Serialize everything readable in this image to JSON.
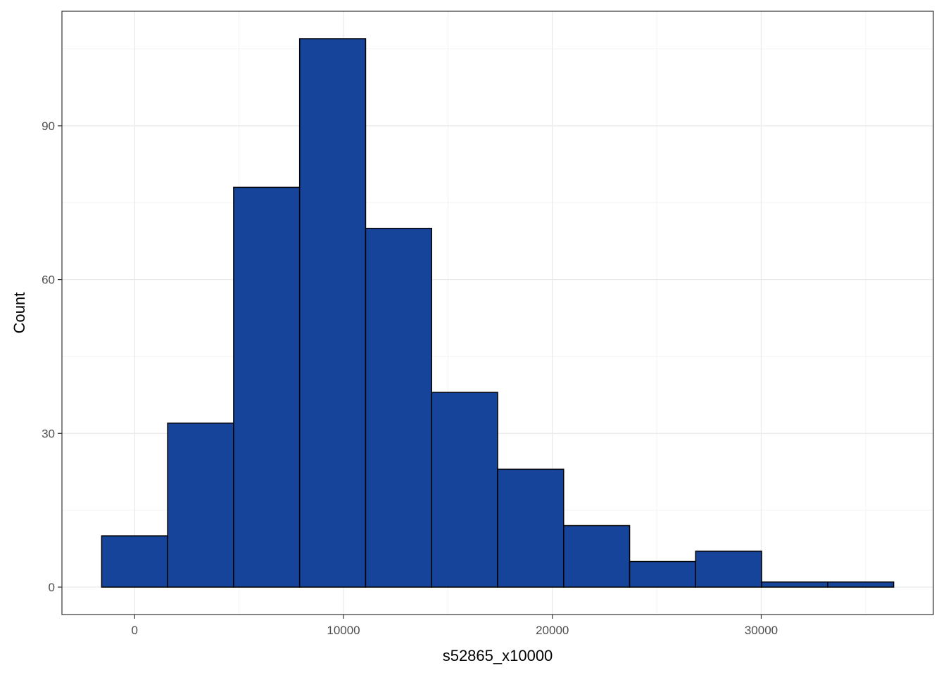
{
  "chart_data": {
    "type": "bar",
    "subtype": "histogram",
    "title": "",
    "xlabel": "s52865_x10000",
    "ylabel": "Count",
    "bin_width": 3160,
    "bins": [
      {
        "x_start": -1580,
        "x_end": 1580,
        "count": 10
      },
      {
        "x_start": 1580,
        "x_end": 4740,
        "count": 32
      },
      {
        "x_start": 4740,
        "x_end": 7900,
        "count": 78
      },
      {
        "x_start": 7900,
        "x_end": 11060,
        "count": 107
      },
      {
        "x_start": 11060,
        "x_end": 14220,
        "count": 70
      },
      {
        "x_start": 14220,
        "x_end": 17380,
        "count": 38
      },
      {
        "x_start": 17380,
        "x_end": 20540,
        "count": 23
      },
      {
        "x_start": 20540,
        "x_end": 23700,
        "count": 12
      },
      {
        "x_start": 23700,
        "x_end": 26860,
        "count": 5
      },
      {
        "x_start": 26860,
        "x_end": 30020,
        "count": 7
      },
      {
        "x_start": 30020,
        "x_end": 33180,
        "count": 1
      },
      {
        "x_start": 33180,
        "x_end": 36340,
        "count": 1
      }
    ],
    "x_ticks": [
      0,
      10000,
      20000,
      30000
    ],
    "x_tick_labels": [
      "0",
      "10000",
      "20000",
      "30000"
    ],
    "y_ticks": [
      0,
      30,
      60,
      90
    ],
    "y_tick_labels": [
      "0",
      "30",
      "60",
      "90"
    ],
    "xlim": [
      -3480,
      38240
    ],
    "ylim": [
      -5.35,
      112.35
    ],
    "grid": true,
    "legend": "none",
    "colors": {
      "bar_fill": "#17449b",
      "bar_outline": "#000000",
      "panel_border": "#333333",
      "grid_major": "#ebebeb",
      "grid_minor": "#f3f3f3",
      "background": "#ffffff",
      "tick_label": "#4d4d4d"
    }
  }
}
